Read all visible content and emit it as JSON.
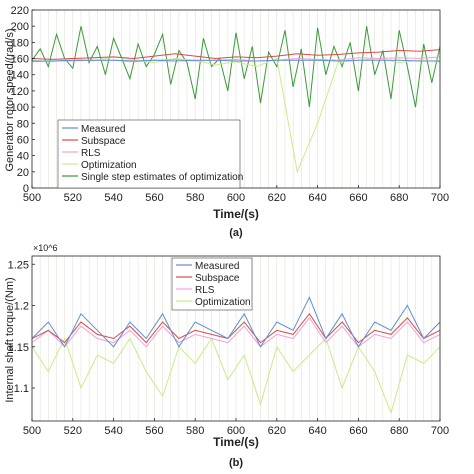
{
  "panel_labels": [
    "(a)",
    "(b)"
  ],
  "chart_data": [
    {
      "type": "line",
      "title": "",
      "xlabel": "Time/(s)",
      "ylabel": "Generator rotor speed/(rad/s)",
      "xlim": [
        500,
        700
      ],
      "ylim": [
        0,
        220
      ],
      "xticks": [
        500,
        520,
        540,
        560,
        580,
        600,
        620,
        640,
        660,
        680,
        700
      ],
      "yticks": [
        0,
        20,
        40,
        60,
        80,
        100,
        120,
        140,
        160,
        180,
        200,
        220
      ],
      "grid": false,
      "legend_position": "bottom-left",
      "colors": {
        "Measured": "#5b8fd6",
        "Subspace": "#d94a4a",
        "RLS": "#f2a0d8",
        "Optimization": "#c7ec8a",
        "Single step estimates of optimization": "#3a9a3a"
      },
      "series": [
        {
          "name": "Measured",
          "x": [
            500,
            510,
            520,
            530,
            540,
            550,
            560,
            570,
            580,
            590,
            600,
            610,
            620,
            630,
            640,
            650,
            660,
            670,
            680,
            690,
            700
          ],
          "values": [
            157,
            157,
            158,
            158,
            158,
            157,
            158,
            157,
            158,
            158,
            157,
            157,
            158,
            158,
            158,
            157,
            158,
            158,
            158,
            157,
            157
          ]
        },
        {
          "name": "Subspace",
          "x": [
            500,
            510,
            520,
            530,
            540,
            550,
            560,
            570,
            580,
            590,
            600,
            610,
            620,
            630,
            640,
            650,
            660,
            670,
            680,
            690,
            700
          ],
          "values": [
            160,
            159,
            160,
            161,
            162,
            160,
            163,
            166,
            163,
            160,
            162,
            161,
            163,
            166,
            164,
            165,
            167,
            168,
            170,
            169,
            171
          ]
        },
        {
          "name": "RLS",
          "x": [
            500,
            510,
            520,
            530,
            540,
            550,
            560,
            570,
            580,
            590,
            600,
            610,
            620,
            630,
            640,
            650,
            660,
            670,
            680,
            690,
            700
          ],
          "values": [
            156,
            157,
            157,
            158,
            158,
            156,
            158,
            159,
            157,
            158,
            159,
            157,
            158,
            160,
            159,
            158,
            161,
            160,
            161,
            160,
            162
          ]
        },
        {
          "name": "Optimization",
          "x": [
            500,
            510,
            520,
            530,
            540,
            550,
            560,
            570,
            580,
            590,
            600,
            610,
            620,
            630,
            640,
            650,
            660,
            670,
            680,
            690,
            700
          ],
          "values": [
            158,
            156,
            160,
            157,
            162,
            158,
            155,
            160,
            158,
            152,
            156,
            150,
            160,
            20,
            80,
            155,
            158,
            160,
            155,
            158,
            156
          ]
        },
        {
          "name": "Single step estimates of optimization",
          "x": [
            500,
            504,
            508,
            512,
            516,
            520,
            524,
            528,
            532,
            536,
            540,
            544,
            548,
            552,
            556,
            560,
            564,
            568,
            572,
            576,
            580,
            584,
            588,
            592,
            596,
            600,
            604,
            608,
            612,
            616,
            620,
            624,
            628,
            632,
            636,
            640,
            644,
            648,
            652,
            656,
            660,
            664,
            668,
            672,
            676,
            680,
            684,
            688,
            692,
            696,
            700
          ],
          "values": [
            158,
            172,
            150,
            190,
            160,
            148,
            200,
            155,
            175,
            140,
            185,
            160,
            135,
            178,
            150,
            165,
            190,
            128,
            170,
            155,
            110,
            185,
            150,
            160,
            120,
            192,
            135,
            175,
            105,
            168,
            150,
            195,
            125,
            172,
            100,
            198,
            140,
            175,
            150,
            180,
            120,
            200,
            140,
            170,
            110,
            195,
            150,
            100,
            178,
            130,
            175
          ]
        }
      ]
    },
    {
      "type": "line",
      "title": "",
      "xlabel": "Time/(s)",
      "ylabel": "Internal shaft torque/(Nm)",
      "y_multiplier": "×10^6",
      "xlim": [
        500,
        700
      ],
      "ylim": [
        1.06,
        1.26
      ],
      "xticks": [
        500,
        520,
        540,
        560,
        580,
        600,
        620,
        640,
        660,
        680,
        700
      ],
      "yticks": [
        1.1,
        1.15,
        1.2,
        1.25
      ],
      "grid": false,
      "legend_position": "top-center",
      "colors": {
        "Measured": "#5b8fd6",
        "Subspace": "#d94a4a",
        "RLS": "#f2a0d8",
        "Optimization": "#c7ec8a"
      },
      "series": [
        {
          "name": "Measured",
          "x": [
            500,
            508,
            516,
            524,
            532,
            540,
            548,
            556,
            564,
            572,
            580,
            588,
            596,
            604,
            612,
            620,
            628,
            636,
            644,
            652,
            660,
            668,
            676,
            684,
            692,
            700
          ],
          "values": [
            1.16,
            1.18,
            1.15,
            1.19,
            1.17,
            1.15,
            1.18,
            1.16,
            1.19,
            1.15,
            1.18,
            1.17,
            1.16,
            1.19,
            1.15,
            1.18,
            1.17,
            1.21,
            1.16,
            1.19,
            1.15,
            1.18,
            1.17,
            1.2,
            1.16,
            1.18
          ]
        },
        {
          "name": "Subspace",
          "x": [
            500,
            508,
            516,
            524,
            532,
            540,
            548,
            556,
            564,
            572,
            580,
            588,
            596,
            604,
            612,
            620,
            628,
            636,
            644,
            652,
            660,
            668,
            676,
            684,
            692,
            700
          ],
          "values": [
            1.16,
            1.17,
            1.155,
            1.18,
            1.165,
            1.16,
            1.175,
            1.155,
            1.18,
            1.16,
            1.17,
            1.165,
            1.16,
            1.18,
            1.155,
            1.17,
            1.165,
            1.19,
            1.16,
            1.18,
            1.155,
            1.17,
            1.165,
            1.185,
            1.16,
            1.17
          ]
        },
        {
          "name": "RLS",
          "x": [
            500,
            508,
            516,
            524,
            532,
            540,
            548,
            556,
            564,
            572,
            580,
            588,
            596,
            604,
            612,
            620,
            628,
            636,
            644,
            652,
            660,
            668,
            676,
            684,
            692,
            700
          ],
          "values": [
            1.155,
            1.17,
            1.15,
            1.175,
            1.16,
            1.155,
            1.17,
            1.15,
            1.175,
            1.155,
            1.165,
            1.16,
            1.155,
            1.175,
            1.15,
            1.165,
            1.16,
            1.185,
            1.155,
            1.175,
            1.15,
            1.165,
            1.16,
            1.18,
            1.155,
            1.165
          ]
        },
        {
          "name": "Optimization",
          "x": [
            500,
            508,
            516,
            524,
            532,
            540,
            548,
            556,
            564,
            572,
            580,
            588,
            596,
            604,
            612,
            620,
            628,
            636,
            644,
            652,
            660,
            668,
            676,
            684,
            692,
            700
          ],
          "values": [
            1.15,
            1.12,
            1.16,
            1.1,
            1.14,
            1.13,
            1.16,
            1.12,
            1.09,
            1.15,
            1.13,
            1.16,
            1.11,
            1.14,
            1.08,
            1.15,
            1.12,
            1.14,
            1.16,
            1.1,
            1.15,
            1.12,
            1.07,
            1.14,
            1.13,
            1.15
          ]
        }
      ]
    }
  ]
}
